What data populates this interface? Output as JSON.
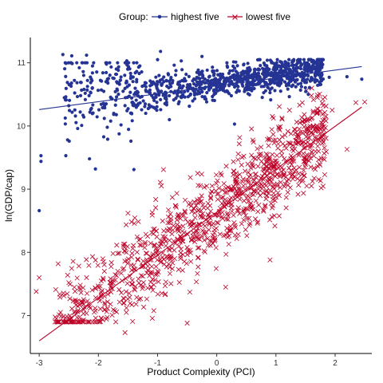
{
  "chart_data": {
    "type": "scatter",
    "title": "",
    "xlabel": "Product Complexity (PCI)",
    "ylabel": "ln(GDP/cap)",
    "xlim": [
      -3.15,
      2.62
    ],
    "ylim": [
      6.4,
      11.4
    ],
    "xticks": [
      -3,
      -2,
      -1,
      0,
      1,
      2
    ],
    "yticks": [
      7,
      8,
      9,
      10,
      11
    ],
    "grid": false,
    "legend": {
      "title": "Group:",
      "placement": "top",
      "entries": [
        "highest five",
        "lowest five"
      ]
    },
    "series": [
      {
        "name": "highest five",
        "marker": "circle",
        "color": "#253494",
        "fit_line": {
          "x": [
            -3.0,
            2.45
          ],
          "y": [
            10.26,
            10.94
          ]
        },
        "points": [
          [
            -3.0,
            8.66
          ],
          [
            -2.97,
            9.53
          ],
          [
            -2.97,
            9.44
          ],
          [
            -2.6,
            11.13
          ],
          [
            -2.45,
            11.11
          ],
          [
            -2.2,
            11.12
          ],
          [
            -2.3,
            10.69
          ],
          [
            -2.3,
            10.48
          ],
          [
            -2.35,
            9.96
          ],
          [
            -2.55,
            9.53
          ],
          [
            -2.52,
            9.78
          ],
          [
            -2.5,
            10.32
          ],
          [
            -2.15,
            9.48
          ],
          [
            -2.1,
            10.84
          ],
          [
            -2.05,
            9.32
          ],
          [
            -1.95,
            10.57
          ],
          [
            -1.9,
            10.12
          ],
          [
            -1.85,
            9.98
          ],
          [
            -1.5,
            10.9
          ],
          [
            -1.3,
            10.95
          ],
          [
            -1.35,
            10.5
          ],
          [
            -1.45,
            9.76
          ],
          [
            -1.4,
            9.31
          ],
          [
            -1.2,
            10.2
          ],
          [
            -1.1,
            10.68
          ],
          [
            -1.0,
            11.05
          ],
          [
            -0.95,
            11.18
          ],
          [
            -0.85,
            10.72
          ],
          [
            -0.8,
            10.1
          ],
          [
            -0.6,
            11.03
          ],
          [
            -0.5,
            10.61
          ],
          [
            -0.25,
            11.1
          ],
          [
            0.3,
            10.03
          ],
          [
            1.9,
            10.77
          ],
          [
            2.2,
            10.78
          ],
          [
            2.45,
            10.74
          ]
        ]
      },
      {
        "name": "lowest five",
        "marker": "x",
        "color": "#bd0026",
        "fit_line": {
          "x": [
            -3.0,
            2.45
          ],
          "y": [
            6.6,
            10.3
          ]
        },
        "points": [
          [
            -3.0,
            7.6
          ],
          [
            -3.05,
            7.38
          ],
          [
            -2.68,
            7.82
          ],
          [
            -2.5,
            7.52
          ],
          [
            -2.3,
            7.22
          ],
          [
            -2.25,
            6.93
          ],
          [
            -2.2,
            7.6
          ],
          [
            -1.9,
            7.09
          ],
          [
            -1.65,
            7.41
          ],
          [
            -1.55,
            6.73
          ],
          [
            -1.5,
            8.62
          ],
          [
            -0.9,
            9.31
          ],
          [
            -0.5,
            6.88
          ],
          [
            0.15,
            7.45
          ],
          [
            0.35,
            8.93
          ],
          [
            0.9,
            7.88
          ],
          [
            1.6,
            9.05
          ],
          [
            1.95,
            10.25
          ],
          [
            2.2,
            9.63
          ],
          [
            2.35,
            10.37
          ],
          [
            2.5,
            10.38
          ],
          [
            1.6,
            10.48
          ],
          [
            1.7,
            10.45
          ],
          [
            1.4,
            10.33
          ],
          [
            1.35,
            10.06
          ]
        ]
      }
    ]
  }
}
